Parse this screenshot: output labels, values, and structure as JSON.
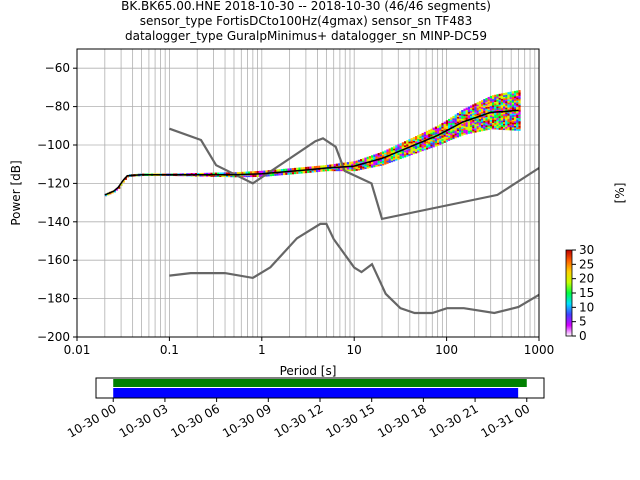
{
  "title_lines": [
    "BK.BK65.00.HNE   2018-10-30 -- 2018-10-30  (46/46 segments)",
    "sensor_type FortisDCto100Hz(4gmax) sensor_sn TF483",
    "datalogger_type GuralpMinimus+ datalogger_sn MINP-DC59"
  ],
  "chart_data": [
    {
      "type": "line",
      "xlabel": "Period [s]",
      "ylabel": "Power [dB]",
      "xscale": "log",
      "xlim": [
        0.01,
        1000
      ],
      "ylim": [
        -200,
        -50
      ],
      "xticks": [
        0.01,
        0.1,
        1,
        10,
        100,
        1000
      ],
      "xtick_labels": [
        "0.01",
        "0.1",
        "1",
        "10",
        "100",
        "1000"
      ],
      "yticks": [
        -200,
        -180,
        -160,
        -140,
        -120,
        -100,
        -80,
        -60
      ],
      "ytick_labels": [
        "−200",
        "−180",
        "−160",
        "−140",
        "−120",
        "−100",
        "−80",
        "−60"
      ],
      "grid": true,
      "series": [
        {
          "role": "high-noise-model",
          "color": "#666666",
          "x": [
            0.1,
            0.22,
            0.32,
            0.8,
            3.8,
            4.6,
            6.3,
            7.9,
            15.4,
            20,
            354.8,
            1000
          ],
          "y": [
            -91.5,
            -97.4,
            -110.5,
            -120,
            -98,
            -96.5,
            -101,
            -113.5,
            -120,
            -138.5,
            -126,
            -112
          ]
        },
        {
          "role": "low-noise-model",
          "color": "#666666",
          "x": [
            0.1,
            0.17,
            0.4,
            0.8,
            1.24,
            2.4,
            4.3,
            5,
            6,
            10,
            12,
            15.6,
            21.9,
            31.6,
            45,
            70,
            101,
            154,
            328,
            600,
            1000
          ],
          "y": [
            -168,
            -166.7,
            -166.7,
            -169.2,
            -163.7,
            -148.6,
            -141.1,
            -141.1,
            -149,
            -163.8,
            -166.2,
            -162.1,
            -177.5,
            -185,
            -187.5,
            -187.5,
            -185,
            -185,
            -187.5,
            -184.4,
            -178
          ]
        },
        {
          "role": "mean-psd",
          "color": "#000000",
          "x": [
            0.02,
            0.025,
            0.028,
            0.032,
            0.035,
            0.05,
            0.1,
            0.5,
            1,
            3,
            5,
            10,
            20,
            40,
            80,
            150,
            300,
            600
          ],
          "y": [
            -126,
            -124,
            -122,
            -118,
            -116,
            -115.5,
            -115.5,
            -115.5,
            -115,
            -113,
            -112,
            -111,
            -107,
            -101,
            -95,
            -88,
            -83,
            -82
          ]
        }
      ],
      "density": {
        "colorbar_label": "[%]",
        "colorbar_ticks": [
          0,
          5,
          10,
          15,
          20,
          25,
          30
        ],
        "colorbar_range": [
          0,
          30
        ],
        "colorbar_colors": [
          "#ffffff",
          "#d400ff",
          "#4040ff",
          "#00e0ff",
          "#00ff40",
          "#c8ff00",
          "#ffd000",
          "#ff6000",
          "#c00000"
        ],
        "spread_db": [
          [
            0.02,
            0
          ],
          [
            0.1,
            0
          ],
          [
            1,
            1
          ],
          [
            5,
            1
          ],
          [
            10,
            2
          ],
          [
            20,
            3
          ],
          [
            50,
            4
          ],
          [
            100,
            5
          ],
          [
            200,
            7
          ],
          [
            400,
            9
          ],
          [
            600,
            10
          ]
        ]
      }
    },
    {
      "type": "timeline",
      "xlim_hours": [
        -1,
        25
      ],
      "tick_hours": [
        0,
        3,
        6,
        9,
        12,
        15,
        18,
        21,
        24
      ],
      "tick_labels": [
        "10-30 00",
        "10-30 03",
        "10-30 06",
        "10-30 09",
        "10-30 12",
        "10-30 15",
        "10-30 18",
        "10-30 21",
        "10-31 00"
      ],
      "bars": [
        {
          "color": "#008000",
          "start_h": 0,
          "end_h": 24
        },
        {
          "color": "#0000ff",
          "start_h": 0,
          "end_h": 23.5
        }
      ]
    }
  ]
}
